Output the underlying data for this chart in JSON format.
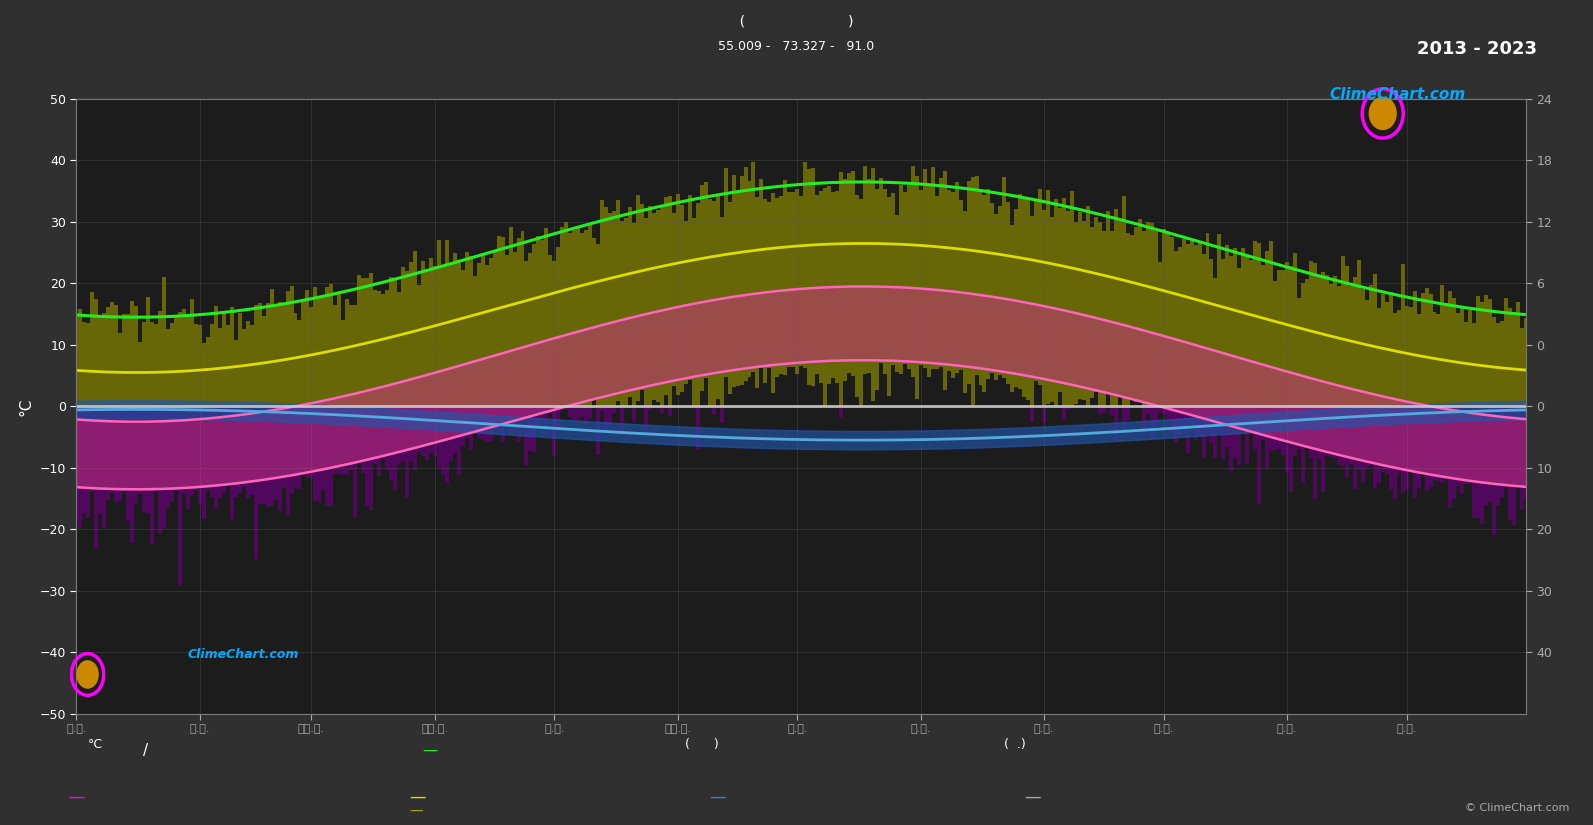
{
  "background_color": "#303030",
  "plot_bg_color": "#1c1c1c",
  "grid_color": "#555555",
  "year_range": "2013 - 2023",
  "coords_line1": "(            )",
  "coords_line2": "55.009 -   73.327 -   91.0",
  "watermark": "ClimeChart.com",
  "copyright": "© ClimeChart.com",
  "ylim": [
    -50,
    50
  ],
  "left_yticks": [
    50,
    40,
    30,
    20,
    10,
    0,
    -10,
    -20,
    -30,
    -40,
    -50
  ],
  "right_yvals": [
    50,
    40,
    30,
    20,
    10,
    0,
    -10,
    -20,
    -30,
    -40
  ],
  "right_ylabels": [
    "24",
    "18",
    "12",
    "6",
    "0",
    "0",
    "10",
    "20",
    "30",
    "40"
  ],
  "green_winter": 14.5,
  "green_summer": 36.5,
  "yellow_winter": 5.5,
  "yellow_summer": 26.5,
  "pink_hi_winter": -2.5,
  "pink_hi_summer": 19.5,
  "pink_lo_winter": -13.5,
  "pink_lo_summer": 7.5,
  "blue_winter": -0.5,
  "blue_summer": -5.5,
  "green_color": "#22ee22",
  "yellow_color": "#dddd00",
  "pink_color": "#ff66bb",
  "blue_color": "#55aadd",
  "zero_line_color": "#cccccc",
  "warm_bar_color": "#888800",
  "cold_bar_color": "#660077",
  "mid_fill_color": "#cc3388",
  "blue_fill_color": "#2255aa",
  "logo_ring_color": "#ff00ff",
  "logo_inner_color": "#cc8800",
  "watermark_color": "#00aaff",
  "month_start_days": [
    0,
    31,
    59,
    90,
    120,
    151,
    181,
    212,
    243,
    273,
    304,
    334
  ],
  "month_abbr": [
    "ม.ค.",
    "ก.พ.",
    "มี.ค.",
    "เม.ย.",
    "พ.ค.",
    "มิ.ย.",
    "ก.ค.",
    "ส.ค.",
    "ก.ย.",
    "ต.ค.",
    "พ.ย.",
    "ธ.ค."
  ]
}
